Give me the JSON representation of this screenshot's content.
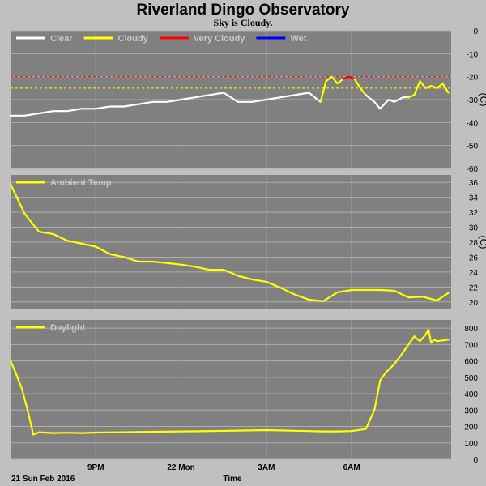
{
  "title": "Riverland Dingo Observatory",
  "status": "Sky is Cloudy.",
  "chart_data": [
    {
      "type": "line",
      "ylim": [
        -60,
        0
      ],
      "yticks": [
        0,
        -10,
        -20,
        -30,
        -40,
        -50,
        -60
      ],
      "yunit": "(C)",
      "legend": [
        {
          "name": "Clear",
          "color": "#ffffff"
        },
        {
          "name": "Cloudy",
          "color": "#ffff00"
        },
        {
          "name": "Very Cloudy",
          "color": "#ff0000"
        },
        {
          "name": "Wet",
          "color": "#0000ff"
        }
      ],
      "thresholds": [
        {
          "y": -20,
          "color": "#ff0000"
        },
        {
          "y": -25,
          "color": "#ffff00"
        }
      ],
      "series": [
        {
          "name": "Clear",
          "color": "#ffffff",
          "x": [
            18.0,
            18.5,
            19.0,
            19.5,
            20.0,
            20.5,
            21.0,
            21.5,
            22.0,
            22.5,
            23.0,
            23.5,
            24.0,
            24.5,
            25.0,
            25.5,
            26.0,
            26.5,
            27.0,
            27.5,
            28.0,
            28.5,
            28.9
          ],
          "y": [
            -37,
            -37,
            -36,
            -35,
            -35,
            -34,
            -34,
            -33,
            -33,
            -32,
            -31,
            -31,
            -30,
            -29,
            -28,
            -27,
            -31,
            -31,
            -30,
            -29,
            -28,
            -27,
            -31
          ]
        },
        {
          "name": "Cloudy",
          "color": "#ffff00",
          "x": [
            28.9,
            29.1,
            29.3,
            29.5,
            29.7
          ],
          "y": [
            -31,
            -22,
            -20,
            -23,
            -21
          ]
        },
        {
          "name": "Very Cloudy",
          "color": "#ff0000",
          "x": [
            29.7,
            29.9,
            30.1
          ],
          "y": [
            -21,
            -20,
            -21
          ]
        },
        {
          "name": "Cloudy",
          "color": "#ffff00",
          "x": [
            30.1,
            30.3,
            30.5
          ],
          "y": [
            -21,
            -25,
            -28
          ]
        },
        {
          "name": "Clear",
          "color": "#ffffff",
          "x": [
            30.5,
            30.8,
            31.0,
            31.3,
            31.5,
            31.8,
            32.0
          ],
          "y": [
            -28,
            -31,
            -34,
            -30,
            -31,
            -29,
            -29
          ]
        },
        {
          "name": "Cloudy",
          "color": "#ffff00",
          "x": [
            32.0,
            32.2,
            32.4,
            32.6,
            32.8,
            33.0,
            33.2,
            33.4
          ],
          "y": [
            -29,
            -28,
            -22,
            -25,
            -24,
            -25,
            -23,
            -27
          ]
        }
      ]
    },
    {
      "type": "line",
      "ylim": [
        19,
        37
      ],
      "yticks": [
        20,
        22,
        24,
        26,
        28,
        30,
        32,
        34,
        36
      ],
      "yunit": "(C)",
      "legend": [
        {
          "name": "Ambient Temp",
          "color": "#ffff00"
        }
      ],
      "series": [
        {
          "name": "Ambient Temp",
          "color": "#ffff00",
          "x": [
            18.0,
            18.5,
            19.0,
            19.5,
            20.0,
            20.5,
            21.0,
            21.5,
            22.0,
            22.5,
            23.0,
            23.5,
            24.0,
            24.5,
            25.0,
            25.5,
            26.0,
            26.5,
            27.0,
            27.5,
            28.0,
            28.5,
            29.0,
            29.5,
            30.0,
            30.5,
            31.0,
            31.5,
            32.0,
            32.5,
            33.0,
            33.4
          ],
          "y": [
            35.8,
            31.8,
            29.4,
            29.1,
            28.2,
            27.8,
            27.4,
            26.4,
            26.0,
            25.4,
            25.4,
            25.2,
            25.0,
            24.7,
            24.3,
            24.3,
            23.5,
            23.0,
            22.7,
            21.9,
            21.0,
            20.3,
            20.1,
            21.3,
            21.6,
            21.6,
            21.6,
            21.5,
            20.6,
            20.7,
            20.2,
            21.2
          ]
        }
      ]
    },
    {
      "type": "line",
      "ylim": [
        0,
        850
      ],
      "yticks": [
        0,
        100,
        200,
        300,
        400,
        500,
        600,
        700,
        800
      ],
      "legend": [
        {
          "name": "Daylight",
          "color": "#ffff00"
        }
      ],
      "series": [
        {
          "name": "Daylight",
          "color": "#ffff00",
          "x": [
            18.0,
            18.2,
            18.4,
            18.6,
            18.8,
            19.0,
            19.5,
            20.0,
            20.5,
            21.0,
            22.0,
            23.0,
            24.0,
            25.0,
            26.0,
            27.0,
            28.0,
            29.0,
            29.5,
            30.0,
            30.5,
            30.8,
            31.0,
            31.2,
            31.5,
            31.8,
            32.0,
            32.2,
            32.4,
            32.6,
            32.7,
            32.8,
            32.9,
            33.0,
            33.4
          ],
          "y": [
            600,
            520,
            430,
            300,
            150,
            165,
            160,
            162,
            160,
            163,
            165,
            168,
            170,
            172,
            175,
            178,
            174,
            170,
            170,
            172,
            185,
            300,
            480,
            530,
            580,
            650,
            700,
            750,
            720,
            760,
            790,
            710,
            730,
            720,
            730
          ]
        }
      ]
    }
  ],
  "x_axis": {
    "label": "Time",
    "date": "21 Sun Feb 2016",
    "ticks": [
      {
        "x": 21,
        "label": "9PM"
      },
      {
        "x": 24,
        "label": "22 Mon"
      },
      {
        "x": 27,
        "label": "3AM"
      },
      {
        "x": 30,
        "label": "6AM"
      }
    ],
    "xlim": [
      18.0,
      33.5
    ]
  },
  "colors": {
    "background": "#c0c0c0",
    "plot": "#808080",
    "grid": "#aeaeae"
  }
}
